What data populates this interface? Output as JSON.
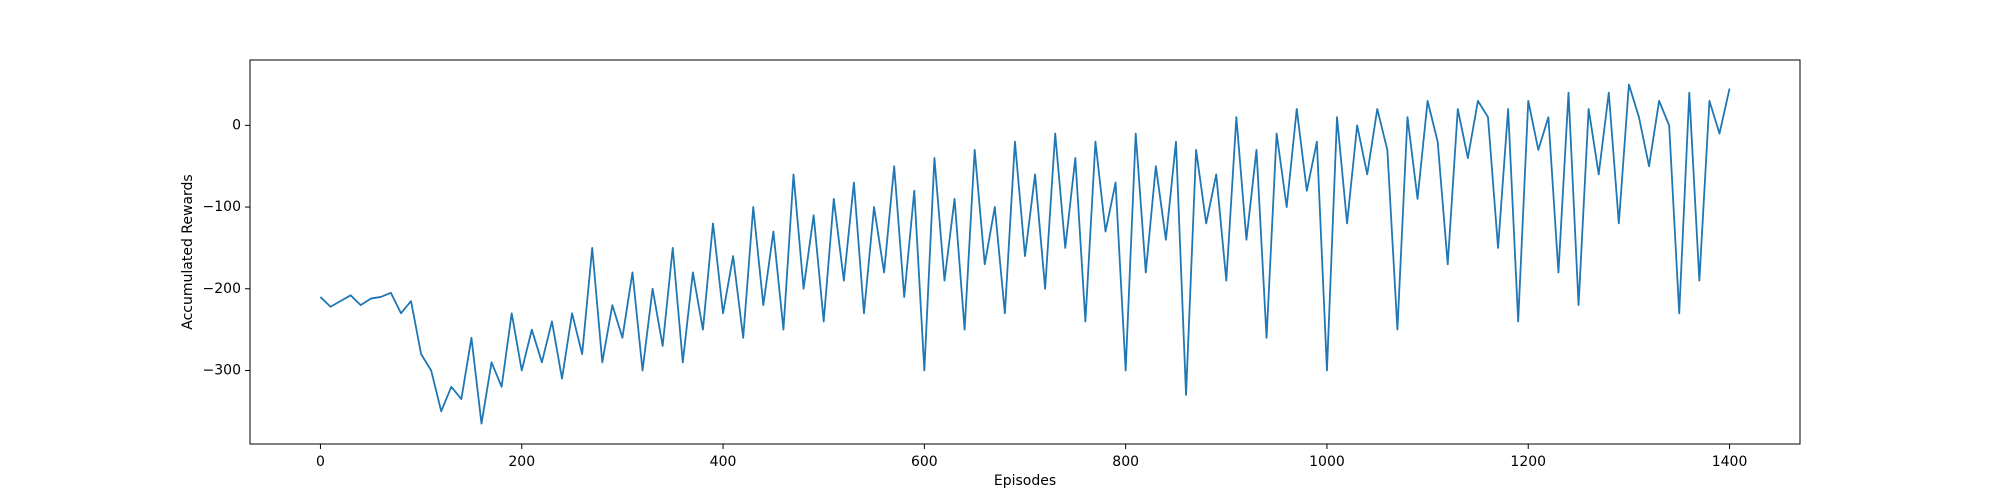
{
  "chart_data": {
    "type": "line",
    "xlabel": "Episodes",
    "ylabel": "Accumulated Rewards",
    "color": "#1f77b4",
    "grid": false,
    "xlim": [
      -70,
      1470
    ],
    "ylim": [
      -390,
      80
    ],
    "xticks": [
      0,
      200,
      400,
      600,
      800,
      1000,
      1200,
      1400
    ],
    "yticks": [
      {
        "value": -300,
        "label": "−300"
      },
      {
        "value": -200,
        "label": "−200"
      },
      {
        "value": -100,
        "label": "−100"
      },
      0
    ],
    "x": [
      0,
      10,
      20,
      30,
      40,
      50,
      60,
      70,
      80,
      90,
      100,
      110,
      120,
      130,
      140,
      150,
      160,
      170,
      180,
      190,
      200,
      210,
      220,
      230,
      240,
      250,
      260,
      270,
      280,
      290,
      300,
      310,
      320,
      330,
      340,
      350,
      360,
      370,
      380,
      390,
      400,
      410,
      420,
      430,
      440,
      450,
      460,
      470,
      480,
      490,
      500,
      510,
      520,
      530,
      540,
      550,
      560,
      570,
      580,
      590,
      600,
      610,
      620,
      630,
      640,
      650,
      660,
      670,
      680,
      690,
      700,
      710,
      720,
      730,
      740,
      750,
      760,
      770,
      780,
      790,
      800,
      810,
      820,
      830,
      840,
      850,
      860,
      870,
      880,
      890,
      900,
      910,
      920,
      930,
      940,
      950,
      960,
      970,
      980,
      990,
      1000,
      1010,
      1020,
      1030,
      1040,
      1050,
      1060,
      1070,
      1080,
      1090,
      1100,
      1110,
      1120,
      1130,
      1140,
      1150,
      1160,
      1170,
      1180,
      1190,
      1200,
      1210,
      1220,
      1230,
      1240,
      1250,
      1260,
      1270,
      1280,
      1290,
      1300,
      1310,
      1320,
      1330,
      1340,
      1350,
      1360,
      1370,
      1380,
      1390,
      1400
    ],
    "values": [
      -210,
      -222,
      -215,
      -208,
      -220,
      -212,
      -210,
      -205,
      -230,
      -215,
      -280,
      -300,
      -350,
      -320,
      -335,
      -260,
      -365,
      -290,
      -320,
      -230,
      -300,
      -250,
      -290,
      -240,
      -310,
      -230,
      -280,
      -150,
      -290,
      -220,
      -260,
      -180,
      -300,
      -200,
      -270,
      -150,
      -290,
      -180,
      -250,
      -120,
      -230,
      -160,
      -260,
      -100,
      -220,
      -130,
      -250,
      -60,
      -200,
      -110,
      -240,
      -90,
      -190,
      -70,
      -230,
      -100,
      -180,
      -50,
      -210,
      -80,
      -300,
      -40,
      -190,
      -90,
      -250,
      -30,
      -170,
      -100,
      -230,
      -20,
      -160,
      -60,
      -200,
      -10,
      -150,
      -40,
      -240,
      -20,
      -130,
      -70,
      -300,
      -10,
      -180,
      -50,
      -140,
      -20,
      -330,
      -30,
      -120,
      -60,
      -190,
      10,
      -140,
      -30,
      -260,
      -10,
      -100,
      20,
      -80,
      -20,
      -300,
      10,
      -120,
      0,
      -60,
      20,
      -30,
      -250,
      10,
      -90,
      30,
      -20,
      -170,
      20,
      -40,
      30,
      10,
      -150,
      20,
      -240,
      30,
      -30,
      10,
      -180,
      40,
      -220,
      20,
      -60,
      40,
      -120,
      50,
      10,
      -50,
      30,
      0,
      -230,
      40,
      -190,
      30,
      -10,
      45
    ]
  }
}
